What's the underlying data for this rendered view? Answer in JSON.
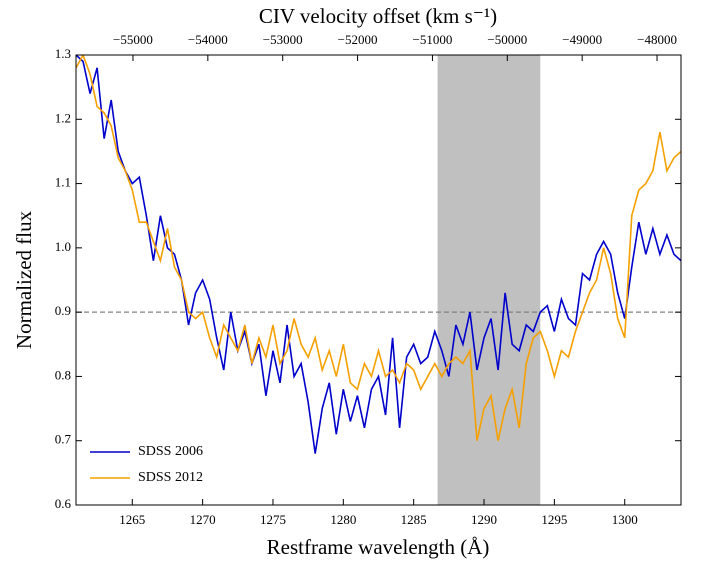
{
  "chart_data": {
    "type": "line",
    "xlabel": "Restframe wavelength (Å)",
    "ylabel": "Normalized flux",
    "x2label": "CIV velocity offset (km s⁻¹)",
    "xlim": [
      1261,
      1304
    ],
    "xticks": [
      1265,
      1270,
      1275,
      1280,
      1285,
      1290,
      1295,
      1300
    ],
    "ylim": [
      0.6,
      1.3
    ],
    "yticks": [
      0.6,
      0.7,
      0.8,
      0.9,
      {
        "value": 1.0,
        "label": "1.0"
      },
      1.1,
      1.2,
      1.3
    ],
    "x2lim": [
      -55761,
      -47680
    ],
    "x2ticks": [
      {
        "value": -55000,
        "label": "−55000"
      },
      {
        "value": -54000,
        "label": "−54000"
      },
      {
        "value": -53000,
        "label": "−53000"
      },
      {
        "value": -52000,
        "label": "−52000"
      },
      {
        "value": -51000,
        "label": "−51000"
      },
      {
        "value": -50000,
        "label": "−50000"
      },
      {
        "value": -49000,
        "label": "−49000"
      },
      {
        "value": -48000,
        "label": "−48000"
      }
    ],
    "hline": 0.9,
    "shaded_range": [
      1286.7,
      1294.0
    ],
    "legend": "lower left",
    "x": [
      1261.0,
      1261.5,
      1262.0,
      1262.5,
      1263.0,
      1263.5,
      1264.0,
      1264.5,
      1265.0,
      1265.5,
      1266.0,
      1266.5,
      1267.0,
      1267.5,
      1268.0,
      1268.5,
      1269.0,
      1269.5,
      1270.0,
      1270.5,
      1271.0,
      1271.5,
      1272.0,
      1272.5,
      1273.0,
      1273.5,
      1274.0,
      1274.5,
      1275.0,
      1275.5,
      1276.0,
      1276.5,
      1277.0,
      1277.5,
      1278.0,
      1278.5,
      1279.0,
      1279.5,
      1280.0,
      1280.5,
      1281.0,
      1281.5,
      1282.0,
      1282.5,
      1283.0,
      1283.5,
      1284.0,
      1284.5,
      1285.0,
      1285.5,
      1286.0,
      1286.5,
      1287.0,
      1287.5,
      1288.0,
      1288.5,
      1289.0,
      1289.5,
      1290.0,
      1290.5,
      1291.0,
      1291.5,
      1292.0,
      1292.5,
      1293.0,
      1293.5,
      1294.0,
      1294.5,
      1295.0,
      1295.5,
      1296.0,
      1296.5,
      1297.0,
      1297.5,
      1298.0,
      1298.5,
      1299.0,
      1299.5,
      1300.0,
      1300.5,
      1301.0,
      1301.5,
      1302.0,
      1302.5,
      1303.0,
      1303.5,
      1304.0
    ],
    "series": [
      {
        "name": "SDSS 2006",
        "color": "#0000cc",
        "values": [
          1.3,
          1.29,
          1.24,
          1.28,
          1.17,
          1.23,
          1.15,
          1.12,
          1.1,
          1.11,
          1.05,
          0.98,
          1.05,
          1.0,
          0.99,
          0.95,
          0.88,
          0.93,
          0.95,
          0.92,
          0.86,
          0.81,
          0.9,
          0.84,
          0.87,
          0.82,
          0.85,
          0.77,
          0.84,
          0.79,
          0.88,
          0.8,
          0.82,
          0.76,
          0.68,
          0.75,
          0.79,
          0.71,
          0.78,
          0.73,
          0.77,
          0.72,
          0.78,
          0.8,
          0.74,
          0.86,
          0.72,
          0.83,
          0.85,
          0.82,
          0.83,
          0.87,
          0.84,
          0.8,
          0.88,
          0.85,
          0.9,
          0.81,
          0.86,
          0.89,
          0.81,
          0.93,
          0.85,
          0.84,
          0.88,
          0.87,
          0.9,
          0.91,
          0.87,
          0.92,
          0.89,
          0.88,
          0.96,
          0.95,
          0.99,
          1.01,
          0.99,
          0.93,
          0.89,
          0.97,
          1.04,
          0.99,
          1.03,
          0.99,
          1.02,
          0.99,
          0.98
        ]
      },
      {
        "name": "SDSS 2012",
        "color": "#f5a000",
        "values": [
          1.28,
          1.3,
          1.27,
          1.22,
          1.21,
          1.19,
          1.14,
          1.12,
          1.09,
          1.04,
          1.04,
          1.01,
          0.98,
          1.03,
          0.97,
          0.95,
          0.9,
          0.89,
          0.9,
          0.86,
          0.83,
          0.88,
          0.86,
          0.84,
          0.88,
          0.82,
          0.86,
          0.83,
          0.88,
          0.82,
          0.84,
          0.89,
          0.85,
          0.83,
          0.86,
          0.81,
          0.84,
          0.8,
          0.85,
          0.79,
          0.78,
          0.82,
          0.8,
          0.84,
          0.8,
          0.81,
          0.79,
          0.82,
          0.81,
          0.78,
          0.8,
          0.82,
          0.8,
          0.82,
          0.83,
          0.82,
          0.84,
          0.7,
          0.75,
          0.77,
          0.7,
          0.75,
          0.78,
          0.72,
          0.82,
          0.86,
          0.87,
          0.84,
          0.8,
          0.84,
          0.83,
          0.87,
          0.9,
          0.93,
          0.95,
          1.0,
          0.96,
          0.89,
          0.86,
          1.05,
          1.09,
          1.1,
          1.12,
          1.18,
          1.12,
          1.14,
          1.15
        ]
      }
    ]
  }
}
